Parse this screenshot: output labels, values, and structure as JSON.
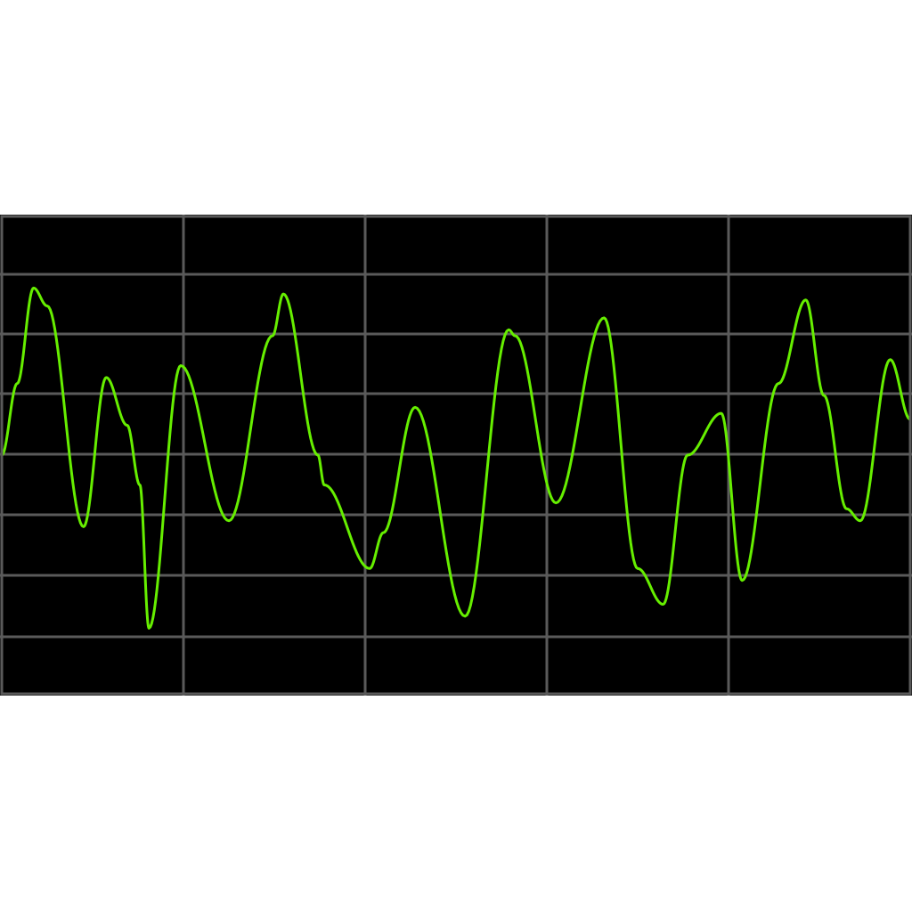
{
  "chart_data": {
    "type": "line",
    "grid": true,
    "xlim": [
      0,
      10
    ],
    "ylim": [
      -4,
      4
    ],
    "colors": {
      "background": "#000000",
      "grid": "#5a5a5a",
      "trace": "#66ee00"
    },
    "series": [
      {
        "x": [
          0,
          0.17,
          0.35,
          0.5,
          0.9,
          1.15,
          1.38,
          1.52,
          1.62,
          1.97,
          2.5,
          2.98,
          3.1,
          3.48,
          3.55,
          4.05,
          4.2,
          4.55,
          5.1,
          5.58,
          5.65,
          6.1,
          6.63,
          7.0,
          7.28,
          7.55,
          7.92,
          8.15,
          8.55,
          8.85,
          9.05,
          9.3,
          9.45,
          9.78,
          10.0
        ],
        "y": [
          0.0,
          1.2,
          2.8,
          2.5,
          -1.2,
          1.3,
          0.5,
          -0.5,
          -2.9,
          1.5,
          -1.1,
          2.0,
          2.7,
          0.0,
          -0.5,
          -1.9,
          -1.3,
          0.8,
          -2.7,
          2.1,
          2.0,
          -0.8,
          2.3,
          -1.9,
          -2.5,
          0.0,
          0.7,
          -2.1,
          1.2,
          2.6,
          1.0,
          -0.9,
          -1.1,
          1.6,
          0.6
        ]
      }
    ]
  }
}
